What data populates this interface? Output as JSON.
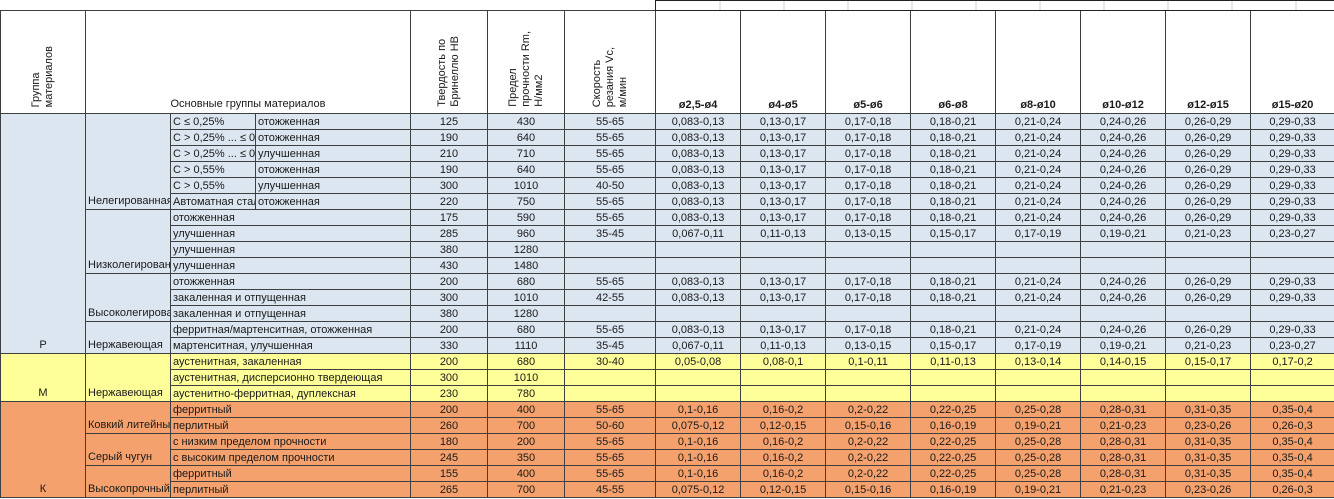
{
  "header": {
    "group_col": "Группа\nматериалов",
    "main_col": "Основные группы материалов",
    "hb_col": "Твердость по\nБринеллю HB",
    "rm_col": "Предел\nпрочности Rm,\nН/мм2",
    "vc_col": "Скорость\nрезания Vc,\nм/мин",
    "diameters": [
      "ø2,5-ø4",
      "ø4-ø5",
      "ø5-ø6",
      "ø6-ø8",
      "ø8-ø10",
      "ø10-ø12",
      "ø12-ø15",
      "ø15-ø20"
    ]
  },
  "colors": {
    "steel_blue": "#DCE6F1",
    "stainless_yellow": "#FFFF99",
    "cast_iron_orange": "#F4A16D",
    "border": "#3f3f3f"
  },
  "sections": [
    {
      "code": "Р",
      "color": "#DCE6F1",
      "subgroups": [
        {
          "name": "Нелегированная",
          "rows": [
            {
              "carbon": "C ≤ 0,25%",
              "state": "отожженная",
              "hb": "125",
              "rm": "430",
              "vc": "55-65",
              "feeds": [
                "0,083-0,13",
                "0,13-0,17",
                "0,17-0,18",
                "0,18-0,21",
                "0,21-0,24",
                "0,24-0,26",
                "0,26-0,29",
                "0,29-0,33"
              ]
            },
            {
              "carbon": "C > 0,25% ... ≤ 0,55%",
              "state": "отожженная",
              "hb": "190",
              "rm": "640",
              "vc": "55-65",
              "feeds": [
                "0,083-0,13",
                "0,13-0,17",
                "0,17-0,18",
                "0,18-0,21",
                "0,21-0,24",
                "0,24-0,26",
                "0,26-0,29",
                "0,29-0,33"
              ]
            },
            {
              "carbon": "C > 0,25% ... ≤ 0,55%",
              "state": "улучшенная",
              "hb": "210",
              "rm": "710",
              "vc": "55-65",
              "feeds": [
                "0,083-0,13",
                "0,13-0,17",
                "0,17-0,18",
                "0,18-0,21",
                "0,21-0,24",
                "0,24-0,26",
                "0,26-0,29",
                "0,29-0,33"
              ]
            },
            {
              "carbon": "C > 0,55%",
              "state": "отожженная",
              "hb": "190",
              "rm": "640",
              "vc": "55-65",
              "feeds": [
                "0,083-0,13",
                "0,13-0,17",
                "0,17-0,18",
                "0,18-0,21",
                "0,21-0,24",
                "0,24-0,26",
                "0,26-0,29",
                "0,29-0,33"
              ]
            },
            {
              "carbon": "C > 0,55%",
              "state": "улучшенная",
              "hb": "300",
              "rm": "1010",
              "vc": "40-50",
              "feeds": [
                "0,083-0,13",
                "0,13-0,17",
                "0,17-0,18",
                "0,18-0,21",
                "0,21-0,24",
                "0,24-0,26",
                "0,26-0,29",
                "0,29-0,33"
              ]
            },
            {
              "carbon": "Автоматная сталь",
              "state": "отожженная",
              "hb": "220",
              "rm": "750",
              "vc": "55-65",
              "feeds": [
                "0,083-0,13",
                "0,13-0,17",
                "0,17-0,18",
                "0,18-0,21",
                "0,21-0,24",
                "0,24-0,26",
                "0,26-0,29",
                "0,29-0,33"
              ]
            }
          ]
        },
        {
          "name": "Низколегированная",
          "rows": [
            {
              "state": "отожженная",
              "hb": "175",
              "rm": "590",
              "vc": "55-65",
              "feeds": [
                "0,083-0,13",
                "0,13-0,17",
                "0,17-0,18",
                "0,18-0,21",
                "0,21-0,24",
                "0,24-0,26",
                "0,26-0,29",
                "0,29-0,33"
              ]
            },
            {
              "state": "улучшенная",
              "hb": "285",
              "rm": "960",
              "vc": "35-45",
              "feeds": [
                "0,067-0,11",
                "0,11-0,13",
                "0,13-0,15",
                "0,15-0,17",
                "0,17-0,19",
                "0,19-0,21",
                "0,21-0,23",
                "0,23-0,27"
              ]
            },
            {
              "state": "улучшенная",
              "hb": "380",
              "rm": "1280",
              "vc": "",
              "feeds": [
                "",
                "",
                "",
                "",
                "",
                "",
                "",
                ""
              ]
            },
            {
              "state": "улучшенная",
              "hb": "430",
              "rm": "1480",
              "vc": "",
              "feeds": [
                "",
                "",
                "",
                "",
                "",
                "",
                "",
                ""
              ]
            }
          ]
        },
        {
          "name": "Высоколегированная",
          "rows": [
            {
              "state": "отожженная",
              "hb": "200",
              "rm": "680",
              "vc": "55-65",
              "feeds": [
                "0,083-0,13",
                "0,13-0,17",
                "0,17-0,18",
                "0,18-0,21",
                "0,21-0,24",
                "0,24-0,26",
                "0,26-0,29",
                "0,29-0,33"
              ]
            },
            {
              "state": "закаленная и отпущенная",
              "hb": "300",
              "rm": "1010",
              "vc": "42-55",
              "feeds": [
                "0,083-0,13",
                "0,13-0,17",
                "0,17-0,18",
                "0,18-0,21",
                "0,21-0,24",
                "0,24-0,26",
                "0,26-0,29",
                "0,29-0,33"
              ]
            },
            {
              "state": "закаленная и отпущенная",
              "hb": "380",
              "rm": "1280",
              "vc": "",
              "feeds": [
                "",
                "",
                "",
                "",
                "",
                "",
                "",
                ""
              ]
            }
          ]
        },
        {
          "name": "Нержавеющая",
          "rows": [
            {
              "state": "ферритная/мартенситная, отожженная",
              "hb": "200",
              "rm": "680",
              "vc": "55-65",
              "feeds": [
                "0,083-0,13",
                "0,13-0,17",
                "0,17-0,18",
                "0,18-0,21",
                "0,21-0,24",
                "0,24-0,26",
                "0,26-0,29",
                "0,29-0,33"
              ]
            },
            {
              "state": "мартенситная, улучшенная",
              "hb": "330",
              "rm": "1110",
              "vc": "35-45",
              "feeds": [
                "0,067-0,11",
                "0,11-0,13",
                "0,13-0,15",
                "0,15-0,17",
                "0,17-0,19",
                "0,19-0,21",
                "0,21-0,23",
                "0,23-0,27"
              ]
            }
          ]
        }
      ]
    },
    {
      "code": "М",
      "color": "#FFFF99",
      "subgroups": [
        {
          "name": "Нержавеющая",
          "rows": [
            {
              "state": "аустенитная, закаленная",
              "hb": "200",
              "rm": "680",
              "vc": "30-40",
              "feeds": [
                "0,05-0,08",
                "0,08-0,1",
                "0,1-0,11",
                "0,11-0,13",
                "0,13-0,14",
                "0,14-0,15",
                "0,15-0,17",
                "0,17-0,2"
              ]
            },
            {
              "state": "аустенитная, дисперсионно твердеющая",
              "hb": "300",
              "rm": "1010",
              "vc": "",
              "feeds": [
                "",
                "",
                "",
                "",
                "",
                "",
                "",
                ""
              ]
            },
            {
              "state": "аустенитно-ферритная, дуплексная",
              "hb": "230",
              "rm": "780",
              "vc": "",
              "feeds": [
                "",
                "",
                "",
                "",
                "",
                "",
                "",
                ""
              ]
            }
          ]
        }
      ]
    },
    {
      "code": "К",
      "color": "#F4A16D",
      "subgroups": [
        {
          "name": "Ковкий литейный чугун",
          "rows": [
            {
              "state": "ферритный",
              "hb": "200",
              "rm": "400",
              "vc": "55-65",
              "feeds": [
                "0,1-0,16",
                "0,16-0,2",
                "0,2-0,22",
                "0,22-0,25",
                "0,25-0,28",
                "0,28-0,31",
                "0,31-0,35",
                "0,35-0,4"
              ]
            },
            {
              "state": "перлитный",
              "hb": "260",
              "rm": "700",
              "vc": "50-60",
              "feeds": [
                "0,075-0,12",
                "0,12-0,15",
                "0,15-0,16",
                "0,16-0,19",
                "0,19-0,21",
                "0,21-0,23",
                "0,23-0,26",
                "0,26-0,3"
              ]
            }
          ]
        },
        {
          "name": "Серый чугун",
          "rows": [
            {
              "state": "с низким пределом прочности",
              "hb": "180",
              "rm": "200",
              "vc": "55-65",
              "feeds": [
                "0,1-0,16",
                "0,16-0,2",
                "0,2-0,22",
                "0,22-0,25",
                "0,25-0,28",
                "0,28-0,31",
                "0,31-0,35",
                "0,35-0,4"
              ]
            },
            {
              "state": "с высоким пределом прочности",
              "hb": "245",
              "rm": "350",
              "vc": "55-65",
              "feeds": [
                "0,1-0,16",
                "0,16-0,2",
                "0,2-0,22",
                "0,22-0,25",
                "0,25-0,28",
                "0,28-0,31",
                "0,31-0,35",
                "0,35-0,4"
              ]
            }
          ]
        },
        {
          "name": "Высокопрочный чугун",
          "rows": [
            {
              "state": "ферритный",
              "hb": "155",
              "rm": "400",
              "vc": "55-65",
              "feeds": [
                "0,1-0,16",
                "0,16-0,2",
                "0,2-0,22",
                "0,22-0,25",
                "0,25-0,28",
                "0,28-0,31",
                "0,31-0,35",
                "0,35-0,4"
              ]
            },
            {
              "state": "перлитный",
              "hb": "265",
              "rm": "700",
              "vc": "45-55",
              "feeds": [
                "0,075-0,12",
                "0,12-0,15",
                "0,15-0,16",
                "0,16-0,19",
                "0,19-0,21",
                "0,21-0,23",
                "0,23-0,26",
                "0,26-0,3"
              ]
            }
          ]
        }
      ]
    }
  ]
}
